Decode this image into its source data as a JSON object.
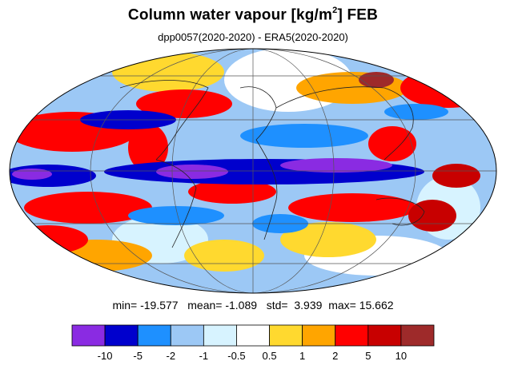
{
  "title_main": "Column water vapour [kg/m",
  "title_sup": "2",
  "title_tail": "] FEB",
  "subtitle": "dpp0057(2020-2020) - ERA5(2020-2020)",
  "stats": {
    "min_label": "min=",
    "min": "-19.577",
    "mean_label": "mean=",
    "mean": "-1.089",
    "std_label": "std=",
    "std": "3.939",
    "max_label": "max=",
    "max": "15.662"
  },
  "colorbar": {
    "colors": [
      "#8a2be2",
      "#0000cd",
      "#1e90ff",
      "#9cc8f5",
      "#d7f3ff",
      "#ffffff",
      "#ffd92f",
      "#ffa500",
      "#ff0000",
      "#c80000",
      "#9e2a2a"
    ],
    "labels": [
      "-10",
      "-5",
      "-2",
      "-1",
      "-0.5",
      "0.5",
      "1",
      "2",
      "5",
      "10"
    ]
  }
}
